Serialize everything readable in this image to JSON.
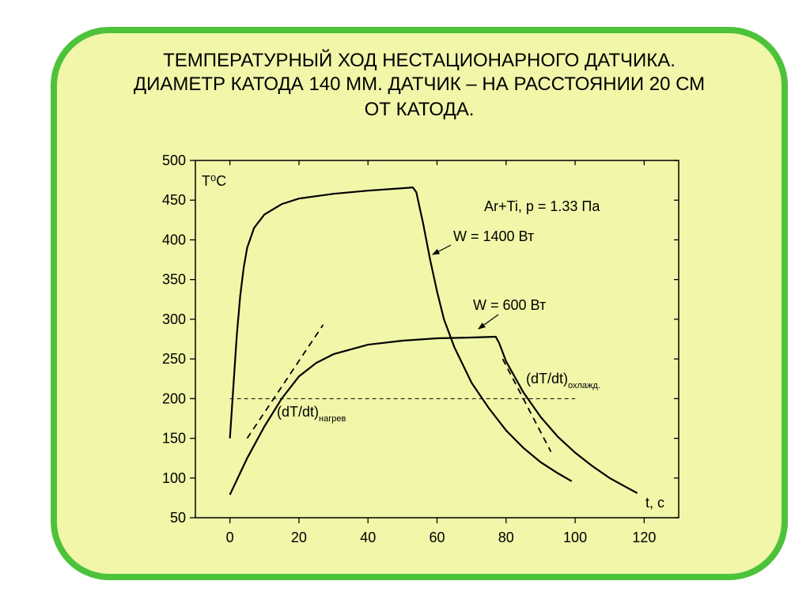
{
  "chart_data": {
    "type": "line",
    "title": [
      "ТЕМПЕРАТУРНЫЙ ХОД НЕСТАЦИОНАРНОГО ДАТЧИКА.",
      "ДИАМЕТР КАТОДА 140 ММ. ДАТЧИК – НА РАССТОЯНИИ 20 СМ",
      "ОТ КАТОДА."
    ],
    "y_label": "T⁰C",
    "x_label": "t, с",
    "condition": "Ar+Ti, p = 1.33 Па",
    "xlim": [
      -10,
      130
    ],
    "xticks": [
      0,
      20,
      40,
      60,
      80,
      100,
      120
    ],
    "ylim": [
      50,
      500
    ],
    "yticks": [
      50,
      100,
      150,
      200,
      250,
      300,
      350,
      400,
      450,
      500
    ],
    "series": [
      {
        "name": "W = 1400 Вт",
        "color": "#000000",
        "x": [
          0,
          1,
          2,
          3,
          4,
          5,
          7,
          10,
          15,
          20,
          30,
          40,
          50,
          53,
          54,
          56,
          58,
          60,
          62,
          65,
          70,
          75,
          80,
          85,
          90,
          95,
          99
        ],
        "values": [
          150,
          215,
          280,
          330,
          365,
          390,
          415,
          432,
          445,
          452,
          458,
          462,
          465,
          466,
          460,
          420,
          375,
          335,
          300,
          265,
          220,
          188,
          160,
          138,
          120,
          106,
          96
        ]
      },
      {
        "name": "W = 600 Вт",
        "color": "#000000",
        "x": [
          0,
          5,
          10,
          15,
          20,
          25,
          30,
          40,
          50,
          60,
          70,
          77,
          78,
          80,
          85,
          90,
          95,
          100,
          105,
          110,
          115,
          118
        ],
        "values": [
          79,
          125,
          165,
          200,
          228,
          245,
          256,
          268,
          273,
          276,
          277,
          278,
          270,
          247,
          208,
          177,
          152,
          132,
          115,
          100,
          88,
          81
        ]
      }
    ],
    "tangents": [
      {
        "name": "(dT/dt)",
        "sub": "нагрев",
        "x": [
          5,
          27
        ],
        "values": [
          150,
          293
        ]
      },
      {
        "name": "(dT/dt)",
        "sub": "охлажд.",
        "x": [
          79,
          93
        ],
        "values": [
          250,
          133
        ]
      }
    ],
    "reference_line": {
      "x": [
        0,
        100
      ],
      "values": [
        200,
        200
      ]
    }
  }
}
